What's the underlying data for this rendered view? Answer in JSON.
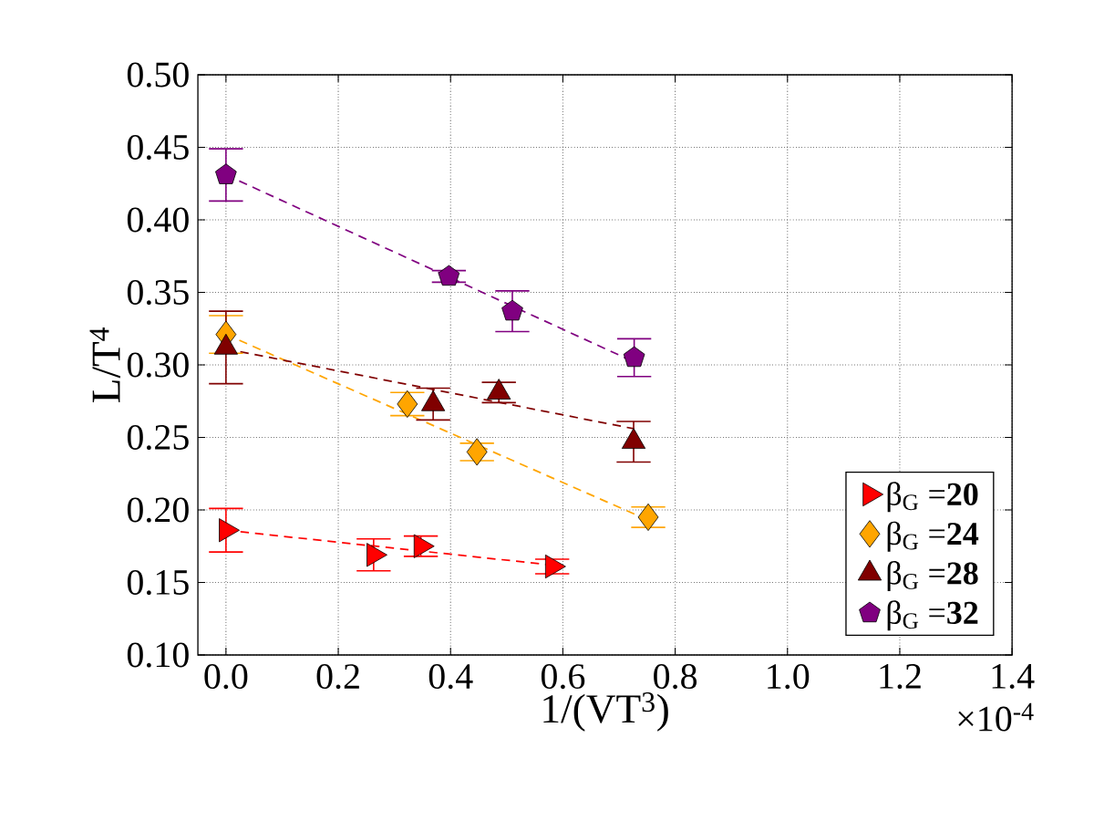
{
  "chart_data": {
    "type": "scatter",
    "xlabel": "1/(VT$^{3}$)",
    "ylabel": "L/T$^{4}$",
    "annotations": [
      "×10$^{-4}$"
    ],
    "xlim": [
      -0.05,
      1.4
    ],
    "ylim": [
      0.1,
      0.5
    ],
    "xticks": [
      {
        "value": 0,
        "label": "0.0"
      },
      {
        "value": 0.2,
        "label": "0.2"
      },
      {
        "value": 0.4,
        "label": "0.4"
      },
      {
        "value": 0.6,
        "label": "0.6"
      },
      {
        "value": 0.8,
        "label": "0.8"
      },
      {
        "value": 1.0,
        "label": "1.0"
      },
      {
        "value": 1.2,
        "label": "1.2"
      },
      {
        "value": 1.4,
        "label": "1.4"
      }
    ],
    "yticks": [
      {
        "value": 0.1,
        "label": "0.10"
      },
      {
        "value": 0.15,
        "label": "0.15"
      },
      {
        "value": 0.2,
        "label": "0.20"
      },
      {
        "value": 0.25,
        "label": "0.25"
      },
      {
        "value": 0.3,
        "label": "0.30"
      },
      {
        "value": 0.35,
        "label": "0.35"
      },
      {
        "value": 0.4,
        "label": "0.40"
      },
      {
        "value": 0.45,
        "label": "0.45"
      },
      {
        "value": 0.5,
        "label": "0.50"
      }
    ],
    "grid": true,
    "legend": "bottom right",
    "series": [
      {
        "name": "β$_{G}$ =**20**",
        "type": "scatter",
        "color": "#ff0000",
        "marker": "triangle-right",
        "x": [
          0,
          0.263,
          0.347,
          0.581
        ],
        "values": [
          0.186,
          0.169,
          0.175,
          0.161
        ],
        "errors": [
          0.015,
          0.011,
          0.007,
          0.005
        ]
      },
      {
        "name": "β$_{G}$ =**24**",
        "type": "scatter",
        "color": "#ffa500",
        "marker": "diamond",
        "x": [
          0,
          0.323,
          0.447,
          0.752
        ],
        "values": [
          0.321,
          0.273,
          0.24,
          0.195
        ],
        "errors": [
          0.013,
          0.008,
          0.006,
          0.007
        ]
      },
      {
        "name": "β$_{G}$ =**28**",
        "type": "scatter",
        "color": "#800000",
        "marker": "triangle",
        "x": [
          0,
          0.369,
          0.486,
          0.726
        ],
        "values": [
          0.312,
          0.273,
          0.281,
          0.247
        ],
        "errors": [
          0.025,
          0.011,
          0.007,
          0.014
        ]
      },
      {
        "name": "β$_{G}$ =**32**",
        "type": "scatter",
        "color": "#800080",
        "x": [
          0,
          0.397,
          0.51,
          0.727
        ],
        "values": [
          0.431,
          0.361,
          0.337,
          0.305
        ],
        "errors": [
          0.018,
          0.004,
          0.014,
          0.013
        ]
      },
      {
        "type": "line",
        "color": "#ff0000",
        "line_style": "dashed",
        "x": [
          0,
          0.581
        ],
        "values": [
          0.186,
          0.162
        ]
      },
      {
        "type": "line",
        "color": "#ffa500",
        "line_style": "dashed",
        "x": [
          0,
          0.752
        ],
        "values": [
          0.321,
          0.193
        ]
      },
      {
        "type": "line",
        "color": "#800000",
        "line_style": "dashed",
        "x": [
          0,
          0.726
        ],
        "values": [
          0.311,
          0.256
        ]
      },
      {
        "type": "line",
        "color": "#800080",
        "line_style": "dashed",
        "x": [
          0,
          0.727
        ],
        "values": [
          0.431,
          0.302
        ]
      }
    ]
  }
}
